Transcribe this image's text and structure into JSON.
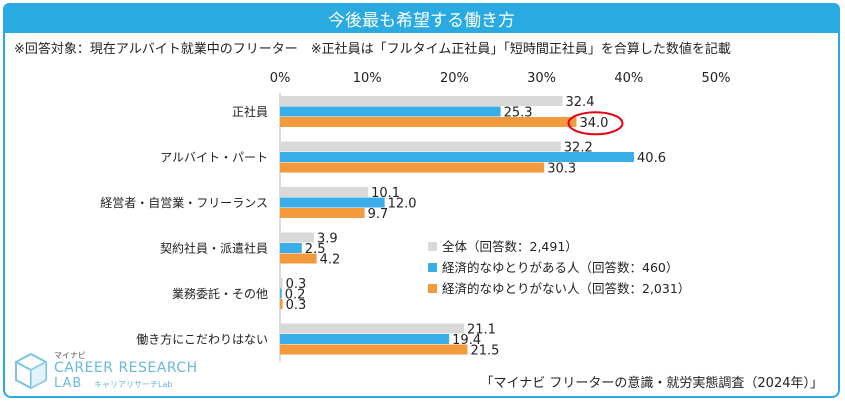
{
  "title": "今後最も希望する働き方",
  "note": "※回答対象：現在アルバイト就業中のフリーター　※正社員は「フルタイム正社員」「短時間正社員」を合算した数値を記載",
  "source": "「マイナビ フリーターの意識・就労実態調査（2024年）」",
  "logo": {
    "small": "マイナビ",
    "line1": "CAREER RESEARCH",
    "line2": "LAB",
    "line3": "キャリアリサーチLab"
  },
  "colors": {
    "accent": "#29abe2",
    "gray": "#d9d9d9",
    "blue": "#3aaee8",
    "orange": "#f39a3c",
    "highlight": "#e60012"
  },
  "chart_data": {
    "type": "bar",
    "orientation": "horizontal",
    "categories": [
      "正社員",
      "アルバイト・パート",
      "経営者・自営業・フリーランス",
      "契約社員・派遣社員",
      "業務委託・その他",
      "働き方にこだわりはない"
    ],
    "series": [
      {
        "name": "全体（回答数：2,491）",
        "values": [
          32.4,
          32.2,
          10.1,
          3.9,
          0.3,
          21.1
        ]
      },
      {
        "name": "経済的なゆとりがある人（回答数：460）",
        "values": [
          25.3,
          40.6,
          12.0,
          2.5,
          0.2,
          19.4
        ]
      },
      {
        "name": "経済的なゆとりがない人（回答数：2,031）",
        "values": [
          34.0,
          30.3,
          9.7,
          4.2,
          0.3,
          21.5
        ]
      }
    ],
    "xlim": [
      0,
      50
    ],
    "xticks": [
      "0%",
      "10%",
      "20%",
      "30%",
      "40%",
      "50%"
    ],
    "highlight": {
      "category_index": 0,
      "series_index": 2,
      "value_label": "34.0"
    },
    "legend_position": "center-right"
  }
}
